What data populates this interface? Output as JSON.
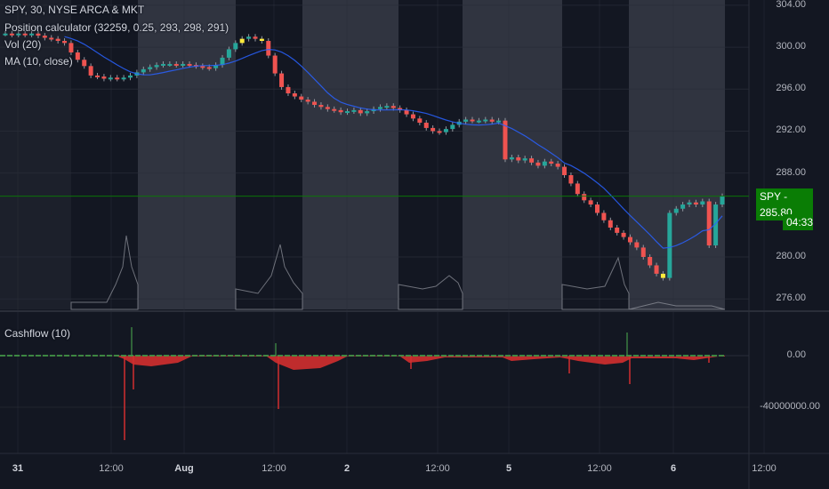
{
  "header": {
    "symbol_line": "SPY, 30, NYSE ARCA & MKT",
    "indicators": [
      "Position calculator (32259, 0.25, 293, 298, 291)",
      "Vol (20)",
      "MA (10, close)"
    ]
  },
  "sub_pane": {
    "title": "Cashflow (10)",
    "y_ticks": [
      "0.00",
      "-40000000.00"
    ]
  },
  "price_badge": "SPY - 285.80",
  "time_badge": "04:33",
  "colors": {
    "background": "#131722",
    "session_band": "#363a45",
    "up": "#26a69a",
    "down": "#ef5350",
    "highlight": "#ffeb3b",
    "ma_line": "#2962ff",
    "cashflow": "#d32f2f",
    "price_line": "#0a7d05"
  },
  "chart_data": [
    {
      "type": "candlestick",
      "title": "SPY, 30, NYSE ARCA & MKT",
      "y_ticks": [
        "304.00",
        "300.00",
        "296.00",
        "292.00",
        "288.00",
        "280.00",
        "276.00"
      ],
      "ylim": [
        275,
        304.5
      ],
      "x_ticks": [
        "31",
        "12:00",
        "Aug",
        "12:00",
        "2",
        "12:00",
        "5",
        "12:00",
        "6",
        "12:00"
      ],
      "last_price": 285.8,
      "close": [
        301.3,
        301.2,
        301.3,
        301.2,
        301.3,
        301.1,
        300.9,
        300.8,
        300.6,
        300.4,
        299.5,
        298.8,
        298.2,
        297.3,
        297.2,
        297.0,
        297.1,
        297.0,
        297.1,
        297.3,
        297.6,
        297.9,
        298.1,
        298.3,
        298.4,
        298.4,
        298.3,
        298.4,
        298.3,
        298.2,
        298.1,
        298.0,
        298.3,
        299.0,
        299.8,
        300.4,
        300.8,
        301.0,
        300.8,
        300.6,
        299.2,
        297.5,
        296.2,
        295.6,
        295.3,
        295.0,
        294.8,
        294.5,
        294.3,
        294.1,
        294.0,
        293.8,
        293.9,
        294.0,
        293.7,
        293.9,
        294.1,
        294.3,
        294.4,
        294.2,
        294.0,
        293.6,
        293.2,
        292.8,
        292.3,
        292.0,
        291.9,
        292.2,
        292.6,
        292.9,
        293.1,
        293.0,
        293.0,
        293.1,
        292.9,
        293.0,
        289.3,
        289.5,
        289.2,
        289.4,
        289.0,
        288.7,
        289.1,
        288.9,
        288.6,
        287.8,
        287.0,
        286.0,
        285.4,
        285.0,
        284.2,
        283.5,
        282.8,
        282.3,
        281.9,
        281.4,
        280.9,
        280.0,
        279.2,
        278.4,
        278.0,
        284.2,
        284.6,
        285.0,
        285.2,
        285.0,
        285.3,
        281.1,
        285.0,
        285.8
      ],
      "series": [
        {
          "name": "MA (10, close)"
        }
      ]
    },
    {
      "type": "bar",
      "title": "Cashflow (10)",
      "note": "negative spikes dominate near session opens"
    }
  ]
}
